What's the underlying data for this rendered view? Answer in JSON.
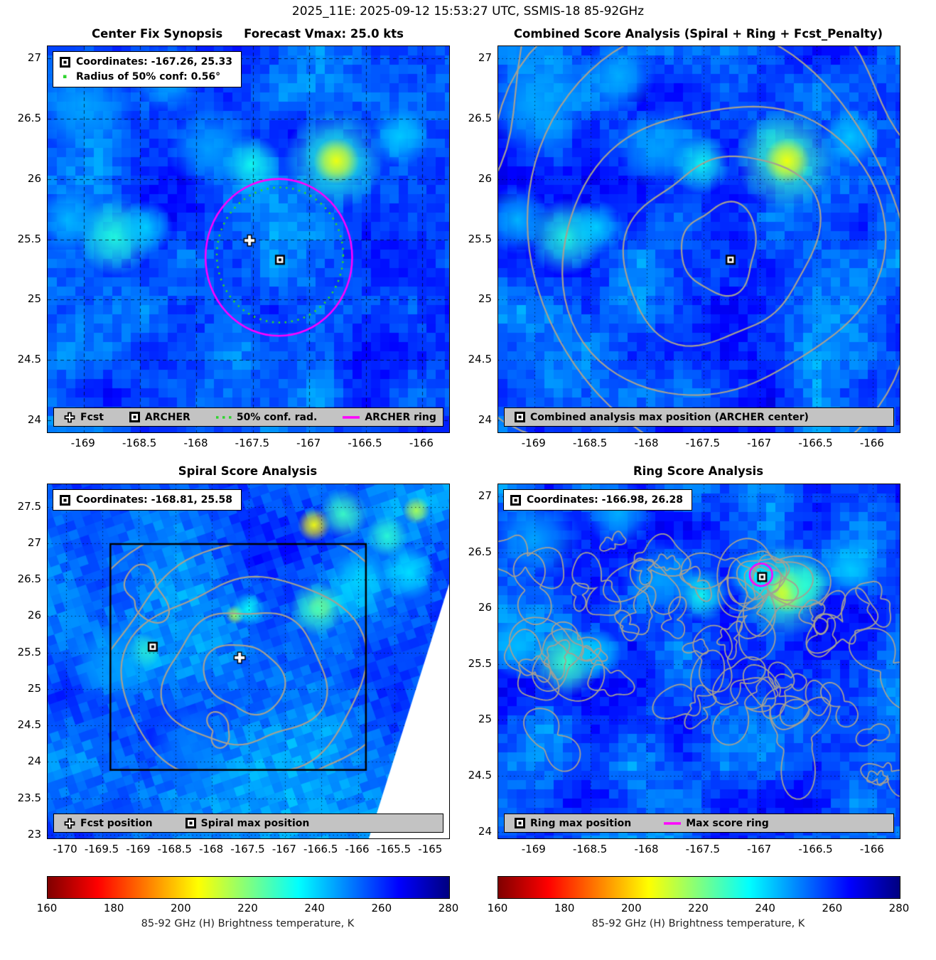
{
  "header": {
    "title": "2025_11E: 2025-09-12 15:53:27 UTC, SSMIS-18 85-92GHz"
  },
  "colors": {
    "ring_magenta": "#ff00ff",
    "conf_green": "#2fd42f",
    "contour_gray": "#a3a095",
    "legend_bg": "#c3c3c3"
  },
  "colorbar": {
    "label": "85-92 GHz (H) Brightness temperature, K",
    "range": [
      160,
      280
    ],
    "ticks": [
      160,
      180,
      200,
      220,
      240,
      260,
      280
    ],
    "colormap": "jet reversed"
  },
  "chart_data": [
    {
      "id": "center-fix-synopsis",
      "type": "heatmap",
      "title": "Center Fix Synopsis",
      "title2": "Forecast Vmax: 25.0 kts",
      "xlim": [
        -169.32,
        -165.76
      ],
      "ylim": [
        23.9,
        27.1
      ],
      "xticks": [
        -169,
        -168.5,
        -168,
        -167.5,
        -167,
        -166.5,
        -166
      ],
      "yticks": [
        24,
        24.5,
        25,
        25.5,
        26,
        26.5,
        27
      ],
      "grid": "dashed",
      "background_value_K": 256,
      "info_box": {
        "line1": "Coordinates: -167.26, 25.33",
        "line2": "Radius of 50% conf: 0.56°"
      },
      "legend": [
        {
          "icon": "cross",
          "label": "Fcst"
        },
        {
          "icon": "square",
          "label": "ARCHER"
        },
        {
          "icon": "dotted-green",
          "label": "50% conf. rad."
        },
        {
          "icon": "magenta-line",
          "label": "ARCHER ring"
        }
      ],
      "markers": [
        {
          "symbol": "cross",
          "name": "Fcst",
          "lon": -167.53,
          "lat": 25.49
        },
        {
          "symbol": "square",
          "name": "ARCHER",
          "lon": -167.26,
          "lat": 25.33
        }
      ],
      "rings": [
        {
          "name": "ARCHER ring",
          "style": "solid",
          "color": "#ff00ff",
          "lon": -167.27,
          "lat": 25.35,
          "radius_deg": 0.65
        },
        {
          "name": "50% confidence radius",
          "style": "dotted",
          "color": "#2fd42f",
          "lon": -167.26,
          "lat": 25.37,
          "radius_deg": 0.56
        }
      ],
      "features": [
        {
          "lon": -167.52,
          "lat": 26.12,
          "value_K": 233,
          "radius_deg": 0.13
        },
        {
          "lon": -166.78,
          "lat": 26.16,
          "value_K": 231,
          "radius_deg": 0.22
        },
        {
          "lon": -166.76,
          "lat": 26.15,
          "value_K": 206,
          "radius_deg": 0.1
        },
        {
          "lon": -168.72,
          "lat": 25.52,
          "value_K": 231,
          "radius_deg": 0.17
        },
        {
          "lon": -168.45,
          "lat": 25.6,
          "value_K": 240,
          "radius_deg": 0.12
        },
        {
          "lon": -169.15,
          "lat": 25.66,
          "value_K": 243,
          "radius_deg": 0.15
        },
        {
          "lon": -169.0,
          "lat": 26.62,
          "value_K": 245,
          "radius_deg": 0.22
        },
        {
          "lon": -168.25,
          "lat": 26.85,
          "value_K": 244,
          "radius_deg": 0.16
        },
        {
          "lon": -166.2,
          "lat": 26.35,
          "value_K": 241,
          "radius_deg": 0.13
        },
        {
          "lon": -167.9,
          "lat": 26.25,
          "value_K": 246,
          "radius_deg": 0.18
        }
      ]
    },
    {
      "id": "combined-score",
      "type": "heatmap",
      "title": "Combined Score Analysis (Spiral + Ring + Fcst_Penalty)",
      "xlim": [
        -169.32,
        -165.76
      ],
      "ylim": [
        23.9,
        27.1
      ],
      "xticks": [
        -169,
        -168.5,
        -168,
        -167.5,
        -167,
        -166.5,
        -166
      ],
      "yticks": [
        24,
        24.5,
        25,
        25.5,
        26,
        26.5,
        27
      ],
      "grid": "dotted",
      "background_value_K": 256,
      "legend": [
        {
          "icon": "square",
          "label": "Combined analysis max position (ARCHER center)"
        }
      ],
      "markers": [
        {
          "symbol": "square",
          "name": "Combined analysis max position",
          "lon": -167.26,
          "lat": 25.33
        }
      ],
      "contours": {
        "type": "nested",
        "center": [
          -167.35,
          25.42
        ],
        "radii_deg": [
          0.35,
          0.8,
          1.3,
          1.75,
          2.2,
          2.7
        ]
      },
      "features": [
        {
          "lon": -167.52,
          "lat": 26.12,
          "value_K": 233,
          "radius_deg": 0.13
        },
        {
          "lon": -166.78,
          "lat": 26.16,
          "value_K": 228,
          "radius_deg": 0.22
        },
        {
          "lon": -166.76,
          "lat": 26.15,
          "value_K": 206,
          "radius_deg": 0.1
        },
        {
          "lon": -168.72,
          "lat": 25.52,
          "value_K": 231,
          "radius_deg": 0.17
        },
        {
          "lon": -168.45,
          "lat": 25.6,
          "value_K": 240,
          "radius_deg": 0.12
        },
        {
          "lon": -169.15,
          "lat": 25.66,
          "value_K": 243,
          "radius_deg": 0.15
        },
        {
          "lon": -169.0,
          "lat": 26.62,
          "value_K": 245,
          "radius_deg": 0.22
        },
        {
          "lon": -168.25,
          "lat": 26.85,
          "value_K": 244,
          "radius_deg": 0.16
        },
        {
          "lon": -166.2,
          "lat": 26.35,
          "value_K": 241,
          "radius_deg": 0.13
        },
        {
          "lon": -167.9,
          "lat": 26.25,
          "value_K": 246,
          "radius_deg": 0.18
        }
      ]
    },
    {
      "id": "spiral-score",
      "type": "heatmap",
      "title": "Spiral Score Analysis",
      "xlim": [
        -170.25,
        -164.75
      ],
      "ylim": [
        22.95,
        27.81
      ],
      "xticks": [
        -170,
        -169.5,
        -169,
        -168.5,
        -168,
        -167.5,
        -167,
        -166.5,
        -166,
        -165.5,
        -165
      ],
      "yticks": [
        23,
        23.5,
        24,
        24.5,
        25,
        25.5,
        26,
        26.5,
        27,
        27.5
      ],
      "grid": "dotted",
      "background_value_K": 253,
      "info_box": {
        "line1": "Coordinates: -168.81, 25.58"
      },
      "legend": [
        {
          "icon": "cross",
          "label": "Fcst position"
        },
        {
          "icon": "square",
          "label": "Spiral max position"
        }
      ],
      "markers": [
        {
          "symbol": "cross",
          "name": "Fcst position",
          "lon": -167.62,
          "lat": 25.43
        },
        {
          "symbol": "square",
          "name": "Spiral max position",
          "lon": -168.81,
          "lat": 25.58
        }
      ],
      "domain_box": {
        "lon_min": -169.39,
        "lon_max": -165.89,
        "lat_min": 23.89,
        "lat_max": 26.99
      },
      "contours": {
        "type": "nested",
        "center": [
          -167.55,
          25.15
        ],
        "radii_deg": [
          0.5,
          1.0,
          1.5,
          2.0,
          2.5
        ],
        "clip_to_box": true,
        "extra_loops": [
          {
            "lon": -167.9,
            "lat": 24.45,
            "radius_deg": 0.18
          },
          {
            "lon": -168.9,
            "lat": 26.3,
            "radius_deg": 0.3
          }
        ]
      },
      "features": [
        {
          "lon": -166.52,
          "lat": 26.12,
          "value_K": 198,
          "radius_deg": 0.09
        },
        {
          "lon": -166.55,
          "lat": 26.1,
          "value_K": 228,
          "radius_deg": 0.2
        },
        {
          "lon": -167.68,
          "lat": 26.02,
          "value_K": 214,
          "radius_deg": 0.07
        },
        {
          "lon": -167.5,
          "lat": 26.1,
          "value_K": 234,
          "radius_deg": 0.12
        },
        {
          "lon": -168.95,
          "lat": 25.52,
          "value_K": 229,
          "radius_deg": 0.13
        },
        {
          "lon": -169.35,
          "lat": 25.4,
          "value_K": 246,
          "radius_deg": 0.3
        },
        {
          "lon": -166.6,
          "lat": 27.25,
          "value_K": 206,
          "radius_deg": 0.12
        },
        {
          "lon": -166.2,
          "lat": 27.4,
          "value_K": 228,
          "radius_deg": 0.18
        },
        {
          "lon": -165.6,
          "lat": 27.1,
          "value_K": 230,
          "radius_deg": 0.15
        },
        {
          "lon": -165.3,
          "lat": 26.6,
          "value_K": 238,
          "radius_deg": 0.2
        },
        {
          "lon": -166.0,
          "lat": 26.5,
          "value_K": 240,
          "radius_deg": 0.2
        },
        {
          "lon": -165.2,
          "lat": 27.45,
          "value_K": 215,
          "radius_deg": 0.1
        },
        {
          "lon": -168.3,
          "lat": 24.2,
          "value_K": 250,
          "radius_deg": 0.3
        }
      ]
    },
    {
      "id": "ring-score",
      "type": "heatmap",
      "title": "Ring Score Analysis",
      "xlim": [
        -169.32,
        -165.76
      ],
      "ylim": [
        23.94,
        27.11
      ],
      "xticks": [
        -169,
        -168.5,
        -168,
        -167.5,
        -167,
        -166.5,
        -166
      ],
      "yticks": [
        24,
        24.5,
        25,
        25.5,
        26,
        26.5,
        27
      ],
      "grid": "dotted",
      "background_value_K": 256,
      "info_box": {
        "line1": "Coordinates: -166.98, 26.28"
      },
      "legend": [
        {
          "icon": "square",
          "label": "Ring max position"
        },
        {
          "icon": "magenta-line",
          "label": "Max score ring"
        }
      ],
      "markers": [
        {
          "symbol": "square",
          "name": "Ring max position",
          "lon": -166.98,
          "lat": 26.28
        }
      ],
      "rings": [
        {
          "name": "Max score ring",
          "style": "solid",
          "color": "#ff00ff",
          "lon": -166.99,
          "lat": 26.3,
          "radius_deg": 0.1
        }
      ],
      "contours": {
        "type": "speckle",
        "count": 46,
        "lon_range": [
          -169.15,
          -165.82
        ],
        "lat_range": [
          24.25,
          26.6
        ],
        "radius_range": [
          0.05,
          0.28
        ],
        "clusters": [
          {
            "lon": -168.8,
            "lat": 25.55,
            "radii_deg": [
              0.12,
              0.22,
              0.34
            ]
          },
          {
            "lon": -166.95,
            "lat": 26.28,
            "radii_deg": [
              0.1,
              0.18,
              0.27,
              0.36
            ]
          }
        ]
      },
      "features": [
        {
          "lon": -167.52,
          "lat": 26.12,
          "value_K": 233,
          "radius_deg": 0.13
        },
        {
          "lon": -166.78,
          "lat": 26.16,
          "value_K": 228,
          "radius_deg": 0.22
        },
        {
          "lon": -166.76,
          "lat": 26.15,
          "value_K": 206,
          "radius_deg": 0.1
        },
        {
          "lon": -168.72,
          "lat": 25.52,
          "value_K": 228,
          "radius_deg": 0.17
        },
        {
          "lon": -168.45,
          "lat": 25.6,
          "value_K": 240,
          "radius_deg": 0.12
        },
        {
          "lon": -169.15,
          "lat": 25.66,
          "value_K": 243,
          "radius_deg": 0.15
        },
        {
          "lon": -169.0,
          "lat": 26.62,
          "value_K": 245,
          "radius_deg": 0.22
        },
        {
          "lon": -168.25,
          "lat": 26.85,
          "value_K": 244,
          "radius_deg": 0.16
        },
        {
          "lon": -166.2,
          "lat": 26.35,
          "value_K": 241,
          "radius_deg": 0.13
        },
        {
          "lon": -167.05,
          "lat": 26.3,
          "value_K": 236,
          "radius_deg": 0.12
        },
        {
          "lon": -166.6,
          "lat": 26.2,
          "value_K": 230,
          "radius_deg": 0.12
        },
        {
          "lon": -167.9,
          "lat": 26.25,
          "value_K": 246,
          "radius_deg": 0.18
        }
      ]
    }
  ]
}
